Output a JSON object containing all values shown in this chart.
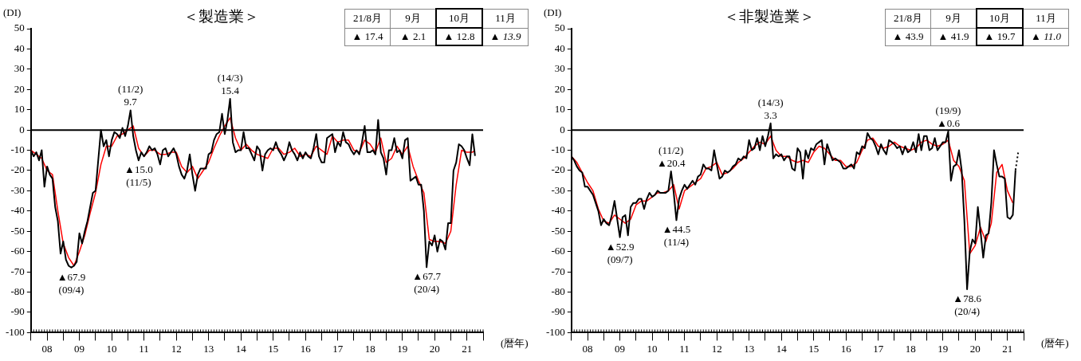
{
  "chart_data": [
    {
      "type": "line",
      "title": "＜製造業＞",
      "ylabel": "(DI)",
      "xlabel": "(暦年)",
      "marker": "none",
      "legend": false,
      "grid": false,
      "xlim": [
        "2008-01",
        "2022-01"
      ],
      "ylim": [
        -100,
        50
      ],
      "yticks": [
        -100,
        -90,
        -80,
        -70,
        -60,
        -50,
        -40,
        -30,
        -20,
        -10,
        0,
        10,
        20,
        30,
        40,
        50
      ],
      "xticks": [
        {
          "value": "2008-01",
          "label": null
        },
        {
          "value": "2008-07",
          "label": "08"
        },
        {
          "value": "2009-01",
          "label": null
        },
        {
          "value": "2009-07",
          "label": "09"
        },
        {
          "value": "2010-01",
          "label": null
        },
        {
          "value": "2010-07",
          "label": "10"
        },
        {
          "value": "2011-01",
          "label": null
        },
        {
          "value": "2011-07",
          "label": "11"
        },
        {
          "value": "2012-01",
          "label": null
        },
        {
          "value": "2012-07",
          "label": "12"
        },
        {
          "value": "2013-01",
          "label": null
        },
        {
          "value": "2013-07",
          "label": "13"
        },
        {
          "value": "2014-01",
          "label": null
        },
        {
          "value": "2014-07",
          "label": "14"
        },
        {
          "value": "2015-01",
          "label": null
        },
        {
          "value": "2015-07",
          "label": "15"
        },
        {
          "value": "2016-01",
          "label": null
        },
        {
          "value": "2016-07",
          "label": "16"
        },
        {
          "value": "2017-01",
          "label": null
        },
        {
          "value": "2017-07",
          "label": "17"
        },
        {
          "value": "2018-01",
          "label": null
        },
        {
          "value": "2018-07",
          "label": "18"
        },
        {
          "value": "2019-01",
          "label": null
        },
        {
          "value": "2019-07",
          "label": "19"
        },
        {
          "value": "2020-01",
          "label": null
        },
        {
          "value": "2020-07",
          "label": "20"
        },
        {
          "value": "2021-01",
          "label": null
        },
        {
          "value": "2021-07",
          "label": "21"
        },
        {
          "value": "2022-01",
          "label": null
        }
      ],
      "ref_lines": [
        {
          "axis": "y",
          "value": 0,
          "color": "#000000"
        }
      ],
      "x": [
        "2008-01",
        "2008-02",
        "2008-03",
        "2008-04",
        "2008-05",
        "2008-06",
        "2008-07",
        "2008-08",
        "2008-09",
        "2008-10",
        "2008-11",
        "2008-12",
        "2009-01",
        "2009-02",
        "2009-03",
        "2009-04",
        "2009-05",
        "2009-06",
        "2009-07",
        "2009-08",
        "2009-09",
        "2009-10",
        "2009-11",
        "2009-12",
        "2010-01",
        "2010-02",
        "2010-03",
        "2010-04",
        "2010-05",
        "2010-06",
        "2010-07",
        "2010-08",
        "2010-09",
        "2010-10",
        "2010-11",
        "2010-12",
        "2011-01",
        "2011-02",
        "2011-03",
        "2011-04",
        "2011-05",
        "2011-06",
        "2011-07",
        "2011-08",
        "2011-09",
        "2011-10",
        "2011-11",
        "2011-12",
        "2012-01",
        "2012-02",
        "2012-03",
        "2012-04",
        "2012-05",
        "2012-06",
        "2012-07",
        "2012-08",
        "2012-09",
        "2012-10",
        "2012-11",
        "2012-12",
        "2013-01",
        "2013-02",
        "2013-03",
        "2013-04",
        "2013-05",
        "2013-06",
        "2013-07",
        "2013-08",
        "2013-09",
        "2013-10",
        "2013-11",
        "2013-12",
        "2014-01",
        "2014-02",
        "2014-03",
        "2014-04",
        "2014-05",
        "2014-06",
        "2014-07",
        "2014-08",
        "2014-09",
        "2014-10",
        "2014-11",
        "2014-12",
        "2015-01",
        "2015-02",
        "2015-03",
        "2015-04",
        "2015-05",
        "2015-06",
        "2015-07",
        "2015-08",
        "2015-09",
        "2015-10",
        "2015-11",
        "2015-12",
        "2016-01",
        "2016-02",
        "2016-03",
        "2016-04",
        "2016-05",
        "2016-06",
        "2016-07",
        "2016-08",
        "2016-09",
        "2016-10",
        "2016-11",
        "2016-12",
        "2017-01",
        "2017-02",
        "2017-03",
        "2017-04",
        "2017-05",
        "2017-06",
        "2017-07",
        "2017-08",
        "2017-09",
        "2017-10",
        "2017-11",
        "2017-12",
        "2018-01",
        "2018-02",
        "2018-03",
        "2018-04",
        "2018-05",
        "2018-06",
        "2018-07",
        "2018-08",
        "2018-09",
        "2018-10",
        "2018-11",
        "2018-12",
        "2019-01",
        "2019-02",
        "2019-03",
        "2019-04",
        "2019-05",
        "2019-06",
        "2019-07",
        "2019-08",
        "2019-09",
        "2019-10",
        "2019-11",
        "2019-12",
        "2020-01",
        "2020-02",
        "2020-03",
        "2020-04",
        "2020-05",
        "2020-06",
        "2020-07",
        "2020-08",
        "2020-09",
        "2020-10",
        "2020-11",
        "2020-12",
        "2021-01",
        "2021-02",
        "2021-03",
        "2021-04",
        "2021-05",
        "2021-06",
        "2021-07",
        "2021-08",
        "2021-09",
        "2021-10"
      ],
      "series": [
        {
          "color": "#000000",
          "values": [
            -10,
            -13,
            -11,
            -15,
            -10,
            -28,
            -18,
            -22,
            -24,
            -38,
            -45,
            -61,
            -55,
            -64,
            -67,
            -67.9,
            -67,
            -65,
            -51,
            -56,
            -50,
            -45,
            -38,
            -31,
            -30,
            -15,
            0,
            -8,
            -5,
            -13,
            -5,
            -1,
            -2,
            -4,
            1,
            -3,
            2,
            9.7,
            -3,
            -10,
            -15.0,
            -11,
            -13,
            -11,
            -8,
            -10,
            -9,
            -12,
            -17,
            -10,
            -9,
            -13,
            -11,
            -9,
            -12,
            -18,
            -22,
            -24,
            -20,
            -12,
            -22,
            -30,
            -22,
            -19,
            -19,
            -19,
            -12,
            -11,
            -5,
            -2,
            -1,
            8,
            -2,
            5,
            15.4,
            -6,
            -11,
            -10,
            -10,
            -1,
            -9,
            -9,
            -12,
            -15,
            -8,
            -10,
            -20,
            -12,
            -10,
            -9,
            -10,
            -6,
            -10,
            -12,
            -15,
            -12,
            -6,
            -10,
            -12,
            -15,
            -11,
            -14,
            -11,
            -13,
            -14,
            -9,
            -2,
            -13,
            -16,
            -16,
            -4,
            -3,
            -2,
            -11,
            -6,
            -8,
            -1,
            -6,
            -7,
            -10,
            -12,
            -10,
            -12,
            -6,
            2,
            -11,
            -11,
            -10,
            -12,
            5,
            -11,
            -14,
            -22,
            -10,
            -10,
            -4,
            -11,
            -10,
            -14,
            -5,
            -4,
            -25,
            -24,
            -23,
            -27,
            -27,
            -40,
            -67.7,
            -55,
            -57,
            -52,
            -60,
            -54,
            -55,
            -59,
            -46,
            -46,
            -20,
            -16,
            -7,
            -8,
            -10,
            -14,
            -17.4,
            -2.1,
            -12.8
          ]
        },
        {
          "color": "#ff0000",
          "x": [
            "2008-01",
            "2008-03",
            "2008-05",
            "2008-07",
            "2008-09",
            "2008-11",
            "2009-01",
            "2009-03",
            "2009-05",
            "2009-07",
            "2009-09",
            "2009-11",
            "2010-01",
            "2010-03",
            "2010-05",
            "2010-07",
            "2010-09",
            "2010-11",
            "2011-01",
            "2011-03",
            "2011-05",
            "2011-07",
            "2011-09",
            "2011-11",
            "2012-01",
            "2012-03",
            "2012-05",
            "2012-07",
            "2012-09",
            "2012-11",
            "2013-01",
            "2013-03",
            "2013-05",
            "2013-07",
            "2013-09",
            "2013-11",
            "2014-01",
            "2014-03",
            "2014-05",
            "2014-07",
            "2014-09",
            "2014-11",
            "2015-01",
            "2015-03",
            "2015-05",
            "2015-07",
            "2015-09",
            "2015-11",
            "2016-01",
            "2016-03",
            "2016-05",
            "2016-07",
            "2016-09",
            "2016-11",
            "2017-01",
            "2017-03",
            "2017-05",
            "2017-07",
            "2017-09",
            "2017-11",
            "2018-01",
            "2018-03",
            "2018-05",
            "2018-07",
            "2018-09",
            "2018-11",
            "2019-01",
            "2019-03",
            "2019-05",
            "2019-07",
            "2019-09",
            "2019-11",
            "2020-01",
            "2020-03",
            "2020-05",
            "2020-07",
            "2020-09",
            "2020-11",
            "2021-01",
            "2021-03",
            "2021-05",
            "2021-07",
            "2021-09",
            "2021-10"
          ],
          "values": [
            -10,
            -12,
            -14,
            -20,
            -22,
            -40,
            -56,
            -63,
            -67,
            -60,
            -52,
            -41,
            -31,
            -17,
            -8,
            -8,
            -3,
            -2,
            0,
            2,
            -9,
            -13,
            -10,
            -10,
            -12,
            -12,
            -11,
            -11,
            -18,
            -21,
            -18,
            -24,
            -20,
            -16,
            -9,
            -3,
            2,
            6,
            -4,
            -10,
            -7,
            -10,
            -12,
            -13,
            -14,
            -9,
            -9,
            -12,
            -11,
            -9,
            -13,
            -12,
            -13,
            -8,
            -10,
            -12,
            -3,
            -6,
            -5,
            -5,
            -10,
            -11,
            -5,
            -7,
            -11,
            -4,
            -16,
            -14,
            -8,
            -12,
            -8,
            -18,
            -25,
            -31,
            -54,
            -55,
            -55,
            -56,
            -50,
            -27,
            -10,
            -11,
            -11,
            -10
          ]
        }
      ],
      "annotations": [
        "21/8月",
        "9月",
        "10月",
        "11月",
        "▲ 17.4",
        "▲ 2.1",
        "▲ 12.8",
        "▲ 13.9",
        {
          "text": "▲67.9\n(09/4)",
          "x": "2009-04",
          "y": -67.9
        },
        {
          "text": "(11/2)\n9.7",
          "x": "2011-02",
          "y": 9.7
        },
        {
          "text": "▲15.0\n(11/5)",
          "x": "2011-05",
          "y": -15.0
        },
        {
          "text": "(14/3)\n15.4",
          "x": "2014-03",
          "y": 15.4
        },
        {
          "text": "▲67.7\n(20/4)",
          "x": "2020-04",
          "y": -67.7
        }
      ]
    },
    {
      "type": "line",
      "title": "＜非製造業＞",
      "ylabel": "(DI)",
      "xlabel": "(暦年)",
      "marker": "none",
      "legend": false,
      "grid": false,
      "xlim": [
        "2008-01",
        "2022-01"
      ],
      "ylim": [
        -100,
        50
      ],
      "yticks": [
        -100,
        -90,
        -80,
        -70,
        -60,
        -50,
        -40,
        -30,
        -20,
        -10,
        0,
        10,
        20,
        30,
        40,
        50
      ],
      "xticks": [
        {
          "value": "2008-01",
          "label": null
        },
        {
          "value": "2008-07",
          "label": "08"
        },
        {
          "value": "2009-01",
          "label": null
        },
        {
          "value": "2009-07",
          "label": "09"
        },
        {
          "value": "2010-01",
          "label": null
        },
        {
          "value": "2010-07",
          "label": "10"
        },
        {
          "value": "2011-01",
          "label": null
        },
        {
          "value": "2011-07",
          "label": "11"
        },
        {
          "value": "2012-01",
          "label": null
        },
        {
          "value": "2012-07",
          "label": "12"
        },
        {
          "value": "2013-01",
          "label": null
        },
        {
          "value": "2013-07",
          "label": "13"
        },
        {
          "value": "2014-01",
          "label": null
        },
        {
          "value": "2014-07",
          "label": "14"
        },
        {
          "value": "2015-01",
          "label": null
        },
        {
          "value": "2015-07",
          "label": "15"
        },
        {
          "value": "2016-01",
          "label": null
        },
        {
          "value": "2016-07",
          "label": "16"
        },
        {
          "value": "2017-01",
          "label": null
        },
        {
          "value": "2017-07",
          "label": "17"
        },
        {
          "value": "2018-01",
          "label": null
        },
        {
          "value": "2018-07",
          "label": "18"
        },
        {
          "value": "2019-01",
          "label": null
        },
        {
          "value": "2019-07",
          "label": "19"
        },
        {
          "value": "2020-01",
          "label": null
        },
        {
          "value": "2020-07",
          "label": "20"
        },
        {
          "value": "2021-01",
          "label": null
        },
        {
          "value": "2021-07",
          "label": "21"
        },
        {
          "value": "2022-01",
          "label": null
        }
      ],
      "ref_lines": [
        {
          "axis": "y",
          "value": 0,
          "color": "#000000"
        }
      ],
      "x": [
        "2008-01",
        "2008-02",
        "2008-03",
        "2008-04",
        "2008-05",
        "2008-06",
        "2008-07",
        "2008-08",
        "2008-09",
        "2008-10",
        "2008-11",
        "2008-12",
        "2009-01",
        "2009-02",
        "2009-03",
        "2009-04",
        "2009-05",
        "2009-06",
        "2009-07",
        "2009-08",
        "2009-09",
        "2009-10",
        "2009-11",
        "2009-12",
        "2010-01",
        "2010-02",
        "2010-03",
        "2010-04",
        "2010-05",
        "2010-06",
        "2010-07",
        "2010-08",
        "2010-09",
        "2010-10",
        "2010-11",
        "2010-12",
        "2011-01",
        "2011-02",
        "2011-03",
        "2011-04",
        "2011-05",
        "2011-06",
        "2011-07",
        "2011-08",
        "2011-09",
        "2011-10",
        "2011-11",
        "2011-12",
        "2012-01",
        "2012-02",
        "2012-03",
        "2012-04",
        "2012-05",
        "2012-06",
        "2012-07",
        "2012-08",
        "2012-09",
        "2012-10",
        "2012-11",
        "2012-12",
        "2013-01",
        "2013-02",
        "2013-03",
        "2013-04",
        "2013-05",
        "2013-06",
        "2013-07",
        "2013-08",
        "2013-09",
        "2013-10",
        "2013-11",
        "2013-12",
        "2014-01",
        "2014-02",
        "2014-03",
        "2014-04",
        "2014-05",
        "2014-06",
        "2014-07",
        "2014-08",
        "2014-09",
        "2014-10",
        "2014-11",
        "2014-12",
        "2015-01",
        "2015-02",
        "2015-03",
        "2015-04",
        "2015-05",
        "2015-06",
        "2015-07",
        "2015-08",
        "2015-09",
        "2015-10",
        "2015-11",
        "2015-12",
        "2016-01",
        "2016-02",
        "2016-03",
        "2016-04",
        "2016-05",
        "2016-06",
        "2016-07",
        "2016-08",
        "2016-09",
        "2016-10",
        "2016-11",
        "2016-12",
        "2017-01",
        "2017-02",
        "2017-03",
        "2017-04",
        "2017-05",
        "2017-06",
        "2017-07",
        "2017-08",
        "2017-09",
        "2017-10",
        "2017-11",
        "2017-12",
        "2018-01",
        "2018-02",
        "2018-03",
        "2018-04",
        "2018-05",
        "2018-06",
        "2018-07",
        "2018-08",
        "2018-09",
        "2018-10",
        "2018-11",
        "2018-12",
        "2019-01",
        "2019-02",
        "2019-03",
        "2019-04",
        "2019-05",
        "2019-06",
        "2019-07",
        "2019-08",
        "2019-09",
        "2019-10",
        "2019-11",
        "2019-12",
        "2020-01",
        "2020-02",
        "2020-03",
        "2020-04",
        "2020-05",
        "2020-06",
        "2020-07",
        "2020-08",
        "2020-09",
        "2020-10",
        "2020-11",
        "2020-12",
        "2021-01",
        "2021-02",
        "2021-03",
        "2021-04",
        "2021-05",
        "2021-06",
        "2021-07",
        "2021-08",
        "2021-09",
        "2021-10"
      ],
      "series": [
        {
          "color": "#000000",
          "values": [
            -13,
            -15,
            -18,
            -20,
            -21,
            -28,
            -28,
            -30,
            -32,
            -36,
            -40,
            -47,
            -44,
            -46,
            -47,
            -42,
            -35,
            -44,
            -52.9,
            -43,
            -42,
            -52,
            -38,
            -36,
            -36,
            -34,
            -34,
            -39,
            -34,
            -31,
            -33,
            -32,
            -30,
            -31,
            -31,
            -31,
            -30,
            -20.4,
            -31,
            -44.5,
            -34,
            -30,
            -27,
            -29,
            -27,
            -25,
            -27,
            -23,
            -22,
            -17,
            -19,
            -19,
            -20,
            -10,
            -17,
            -24,
            -23,
            -20,
            -21,
            -20,
            -18,
            -17,
            -14,
            -15,
            -13,
            -14,
            -5,
            -10,
            -9,
            -4,
            -10,
            -3,
            -8,
            -3,
            3.3,
            -14,
            -12,
            -13,
            -12,
            -15,
            -13,
            -13,
            -19,
            -20,
            -9,
            -11,
            -24,
            -10,
            -14,
            -9,
            -10,
            -7,
            -6,
            -5,
            -17,
            -7,
            -11,
            -15,
            -14,
            -15,
            -16,
            -19,
            -19,
            -18,
            -17,
            -19,
            -11,
            -12,
            -8,
            -9,
            -1.5,
            -4,
            -5,
            -8,
            -12,
            -7,
            -10,
            -12,
            -5,
            -6,
            -7,
            -9,
            -8,
            -12,
            -8,
            -11,
            -10,
            -6,
            -11,
            -2,
            -10,
            -3,
            -3,
            -10,
            -9,
            -4,
            -10,
            -8,
            -6,
            -6,
            -0.6,
            -25,
            -18,
            -17,
            -10,
            -20,
            -45,
            -78.6,
            -60,
            -54,
            -56,
            -38,
            -50,
            -63,
            -52,
            -51,
            -36,
            -10,
            -17,
            -23,
            -23,
            -24,
            -43,
            -43.9,
            -41.9,
            -19.7
          ]
        },
        {
          "color": "#000000",
          "line_style": "dotted",
          "x": [
            "2021-10",
            "2021-11"
          ],
          "values": [
            -19.7,
            -11.0
          ]
        },
        {
          "color": "#ff0000",
          "x": [
            "2008-01",
            "2008-03",
            "2008-05",
            "2008-07",
            "2008-09",
            "2008-11",
            "2009-01",
            "2009-03",
            "2009-05",
            "2009-07",
            "2009-09",
            "2009-11",
            "2010-01",
            "2010-03",
            "2010-05",
            "2010-07",
            "2010-09",
            "2010-11",
            "2011-01",
            "2011-03",
            "2011-05",
            "2011-07",
            "2011-09",
            "2011-11",
            "2012-01",
            "2012-03",
            "2012-05",
            "2012-07",
            "2012-09",
            "2012-11",
            "2013-01",
            "2013-03",
            "2013-05",
            "2013-07",
            "2013-09",
            "2013-11",
            "2014-01",
            "2014-03",
            "2014-05",
            "2014-07",
            "2014-09",
            "2014-11",
            "2015-01",
            "2015-03",
            "2015-05",
            "2015-07",
            "2015-09",
            "2015-11",
            "2016-01",
            "2016-03",
            "2016-05",
            "2016-07",
            "2016-09",
            "2016-11",
            "2017-01",
            "2017-03",
            "2017-05",
            "2017-07",
            "2017-09",
            "2017-11",
            "2018-01",
            "2018-03",
            "2018-05",
            "2018-07",
            "2018-09",
            "2018-11",
            "2019-01",
            "2019-03",
            "2019-05",
            "2019-07",
            "2019-09",
            "2019-11",
            "2020-01",
            "2020-03",
            "2020-05",
            "2020-07",
            "2020-09",
            "2020-11",
            "2021-01",
            "2021-03",
            "2021-05",
            "2021-07",
            "2021-09"
          ],
          "values": [
            -13,
            -16,
            -21,
            -26,
            -30,
            -39,
            -45,
            -46,
            -42,
            -44,
            -46,
            -44,
            -37,
            -35,
            -35,
            -33,
            -31,
            -31,
            -30,
            -27,
            -39,
            -30,
            -28,
            -26,
            -24,
            -19,
            -18,
            -16,
            -22,
            -21,
            -19,
            -16,
            -14,
            -11,
            -8,
            -6,
            -7,
            -3,
            -10,
            -13,
            -13,
            -15,
            -16,
            -15,
            -16,
            -11,
            -8,
            -9,
            -12,
            -15,
            -15,
            -18,
            -18,
            -16,
            -10,
            -5,
            -4,
            -8,
            -9,
            -8,
            -6,
            -8,
            -9,
            -10,
            -9,
            -6,
            -5,
            -7,
            -8,
            -7,
            -5,
            -15,
            -18,
            -25,
            -61,
            -57,
            -48,
            -55,
            -46,
            -21,
            -17,
            -30,
            -36
          ]
        }
      ],
      "annotations": [
        "21/8月",
        "9月",
        "10月",
        "11月",
        "▲ 43.9",
        "▲ 41.9",
        "▲ 19.7",
        "▲ 11.0",
        {
          "text": "▲52.9\n(09/7)",
          "x": "2009-07",
          "y": -52.9
        },
        {
          "text": "(11/2)\n▲20.4",
          "x": "2011-02",
          "y": -20.4
        },
        {
          "text": "▲44.5\n(11/4)",
          "x": "2011-04",
          "y": -44.5
        },
        {
          "text": "(14/3)\n3.3",
          "x": "2014-03",
          "y": 3.3
        },
        {
          "text": "(19/9)\n▲0.6",
          "x": "2019-09",
          "y": -0.6
        },
        {
          "text": "▲78.6\n(20/4)",
          "x": "2020-04",
          "y": -78.6
        }
      ]
    }
  ]
}
